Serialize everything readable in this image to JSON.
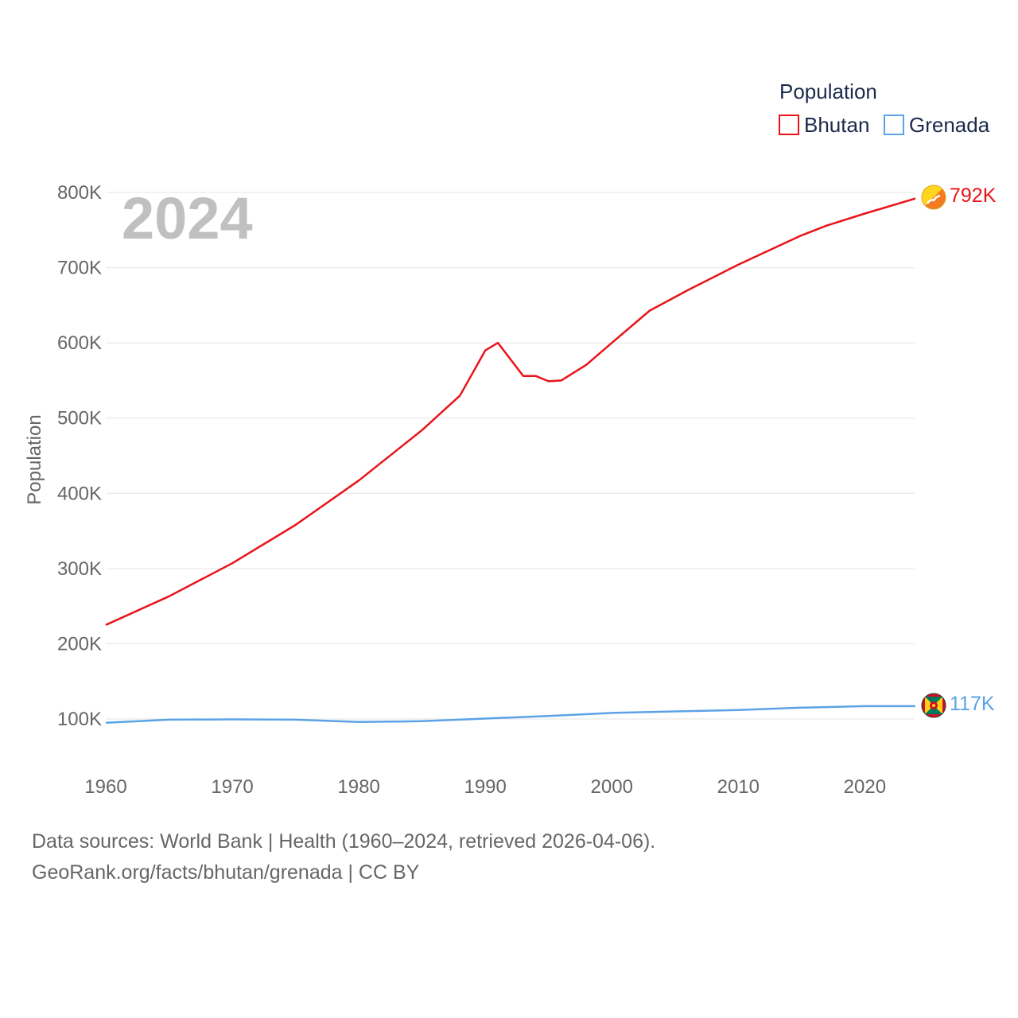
{
  "chart_data": {
    "type": "line",
    "current_year": "2024",
    "ylabel": "Population",
    "xlabel": "",
    "xlim": [
      1960,
      2024
    ],
    "ylim": [
      45000,
      850000
    ],
    "x_ticks": [
      1960,
      1970,
      1980,
      1990,
      2000,
      2010,
      2020
    ],
    "y_ticks": [
      {
        "value": 100000,
        "label": "100K"
      },
      {
        "value": 200000,
        "label": "200K"
      },
      {
        "value": 300000,
        "label": "300K"
      },
      {
        "value": 400000,
        "label": "400K"
      },
      {
        "value": 500000,
        "label": "500K"
      },
      {
        "value": 600000,
        "label": "600K"
      },
      {
        "value": 700000,
        "label": "700K"
      },
      {
        "value": 800000,
        "label": "800K"
      }
    ],
    "legend": {
      "title": "Population",
      "position": "top-right"
    },
    "series": [
      {
        "name": "Bhutan",
        "color": "#e8141a",
        "end_label": "792K",
        "flag_icon": "bhutan-flag-icon",
        "x": [
          1960,
          1965,
          1970,
          1975,
          1980,
          1985,
          1988,
          1990,
          1991,
          1993,
          1994,
          1995,
          1996,
          1998,
          2000,
          2003,
          2005,
          2006,
          2010,
          2015,
          2017,
          2020,
          2024
        ],
        "values": [
          225000,
          263000,
          307000,
          358000,
          417000,
          484000,
          530000,
          590000,
          600000,
          556000,
          556000,
          549000,
          550000,
          571000,
          600000,
          643000,
          661000,
          670000,
          704000,
          743000,
          756000,
          772000,
          792000
        ]
      },
      {
        "name": "Grenada",
        "color": "#5ba3e6",
        "end_label": "117K",
        "flag_icon": "grenada-flag-icon",
        "x": [
          1960,
          1965,
          1970,
          1975,
          1980,
          1985,
          1990,
          1995,
          2000,
          2005,
          2010,
          2015,
          2020,
          2024
        ],
        "values": [
          95000,
          99000,
          99500,
          99000,
          96000,
          97000,
          100500,
          104000,
          108000,
          110000,
          112000,
          115000,
          117000,
          117000
        ]
      }
    ]
  },
  "footer": {
    "line1": "Data sources: World Bank | Health (1960–2024, retrieved 2026-04-06).",
    "line2": "GeoRank.org/facts/bhutan/grenada | CC BY"
  }
}
